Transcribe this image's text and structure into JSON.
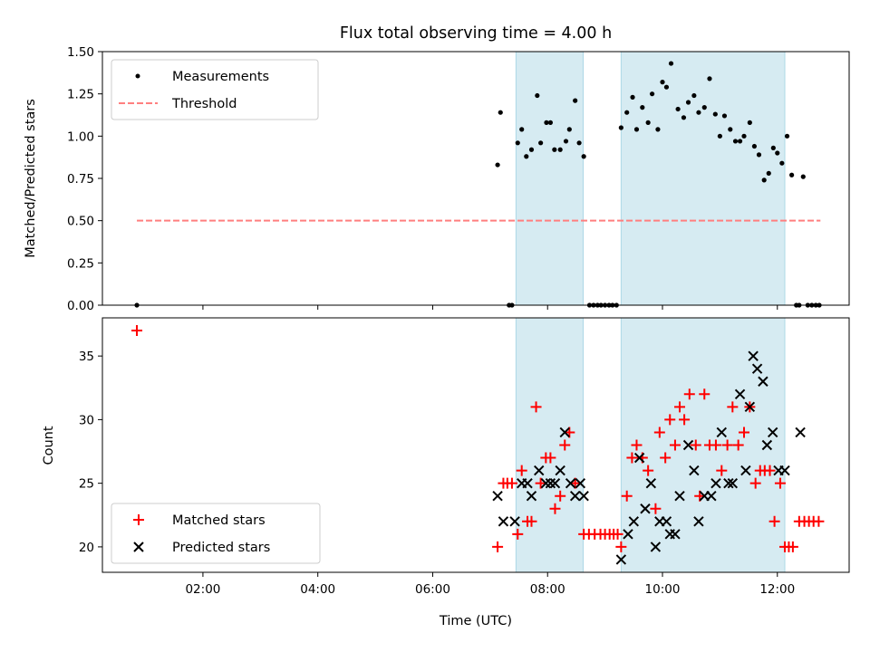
{
  "chart_data": {
    "type": "scatter",
    "title": "Flux total observing time = 4.00 h",
    "xlabel": "Time (UTC)",
    "xlim_hours": [
      0.25,
      13.25
    ],
    "x_ticks": [
      {
        "value": 2,
        "label": "02:00"
      },
      {
        "value": 4,
        "label": "04:00"
      },
      {
        "value": 6,
        "label": "06:00"
      },
      {
        "value": 8,
        "label": "08:00"
      },
      {
        "value": 10,
        "label": "10:00"
      },
      {
        "value": 12,
        "label": "12:00"
      }
    ],
    "shaded_intervals_hours": [
      [
        7.45,
        8.62
      ],
      [
        9.28,
        12.13
      ]
    ],
    "colors": {
      "shade": "#add8e6",
      "measurement": "#000000",
      "threshold": "#ff7f7f",
      "matched": "#ff0000",
      "predicted": "#000000"
    },
    "top": {
      "ylabel": "Matched/Predicted stars",
      "ylim": [
        0,
        1.5
      ],
      "y_ticks": [
        "0.00",
        "0.25",
        "0.50",
        "0.75",
        "1.00",
        "1.25",
        "1.50"
      ],
      "threshold": {
        "value": 0.5,
        "x_range": [
          0.85,
          12.75
        ]
      },
      "legend": {
        "measurements": "Measurements",
        "threshold": "Threshold"
      },
      "measurements": {
        "x": [
          0.85,
          7.13,
          7.18,
          7.33,
          7.38,
          7.48,
          7.55,
          7.63,
          7.72,
          7.82,
          7.88,
          7.98,
          8.05,
          8.12,
          8.22,
          8.32,
          8.38,
          8.48,
          8.55,
          8.63,
          8.73,
          8.8,
          8.87,
          8.93,
          9.0,
          9.07,
          9.13,
          9.2,
          9.28,
          9.38,
          9.48,
          9.55,
          9.65,
          9.75,
          9.82,
          9.92,
          10.0,
          10.07,
          10.15,
          10.27,
          10.37,
          10.45,
          10.55,
          10.63,
          10.73,
          10.82,
          10.92,
          11.0,
          11.08,
          11.18,
          11.27,
          11.35,
          11.42,
          11.52,
          11.6,
          11.68,
          11.77,
          11.85,
          11.93,
          12.0,
          12.08,
          12.17,
          12.25,
          12.33,
          12.38,
          12.45,
          12.53,
          12.6,
          12.67,
          12.73
        ],
        "y": [
          0.0,
          0.83,
          1.14,
          0.0,
          0.0,
          0.96,
          1.04,
          0.88,
          0.92,
          1.24,
          0.96,
          1.08,
          1.08,
          0.92,
          0.92,
          0.97,
          1.04,
          1.21,
          0.96,
          0.88,
          0.0,
          0.0,
          0.0,
          0.0,
          0.0,
          0.0,
          0.0,
          0.0,
          1.05,
          1.14,
          1.23,
          1.04,
          1.17,
          1.08,
          1.25,
          1.04,
          1.32,
          1.29,
          1.43,
          1.16,
          1.11,
          1.2,
          1.24,
          1.14,
          1.17,
          1.34,
          1.13,
          1.0,
          1.12,
          1.04,
          0.97,
          0.97,
          1.0,
          1.08,
          0.94,
          0.89,
          0.74,
          0.78,
          0.93,
          0.9,
          0.84,
          1.0,
          0.77,
          0.0,
          0.0,
          0.76,
          0.0,
          0.0,
          0.0,
          0.0
        ]
      }
    },
    "bottom": {
      "ylabel": "Count",
      "ylim": [
        18,
        38
      ],
      "y_ticks": [
        20,
        25,
        30,
        35
      ],
      "legend": {
        "matched": "Matched stars",
        "predicted": "Predicted stars"
      },
      "matched": {
        "x": [
          0.85,
          7.13,
          7.23,
          7.3,
          7.38,
          7.48,
          7.55,
          7.65,
          7.72,
          7.8,
          7.88,
          7.97,
          8.05,
          8.13,
          8.22,
          8.3,
          8.38,
          8.48,
          8.63,
          8.72,
          8.82,
          8.92,
          9.0,
          9.08,
          9.15,
          9.22,
          9.28,
          9.38,
          9.47,
          9.55,
          9.65,
          9.75,
          9.88,
          9.95,
          10.05,
          10.13,
          10.22,
          10.3,
          10.38,
          10.47,
          10.58,
          10.65,
          10.73,
          10.82,
          10.93,
          11.03,
          11.13,
          11.22,
          11.32,
          11.42,
          11.52,
          11.62,
          11.7,
          11.78,
          11.87,
          11.95,
          12.05,
          12.13,
          12.2,
          12.27,
          12.38,
          12.47,
          12.55,
          12.63,
          12.72
        ],
        "y": [
          37,
          20,
          25,
          25,
          25,
          21,
          26,
          22,
          22,
          31,
          25,
          27,
          27,
          23,
          24,
          28,
          29,
          25,
          21,
          21,
          21,
          21,
          21,
          21,
          21,
          21,
          20,
          24,
          27,
          28,
          27,
          26,
          23,
          29,
          27,
          30,
          28,
          31,
          30,
          32,
          28,
          24,
          32,
          28,
          28,
          26,
          28,
          31,
          28,
          29,
          31,
          25,
          26,
          26,
          26,
          22,
          25,
          20,
          20,
          20,
          22,
          22,
          22,
          22,
          22
        ]
      },
      "predicted": {
        "x": [
          7.13,
          7.23,
          7.43,
          7.55,
          7.65,
          7.72,
          7.85,
          7.97,
          8.05,
          8.13,
          8.22,
          8.3,
          8.4,
          8.48,
          8.57,
          8.63,
          9.28,
          9.4,
          9.5,
          9.6,
          9.7,
          9.8,
          9.88,
          9.95,
          10.07,
          10.13,
          10.22,
          10.3,
          10.45,
          10.55,
          10.63,
          10.73,
          10.85,
          10.93,
          11.03,
          11.15,
          11.22,
          11.35,
          11.45,
          11.52,
          11.58,
          11.65,
          11.75,
          11.82,
          11.92,
          12.02,
          12.13,
          12.4
        ],
        "y": [
          24,
          22,
          22,
          25,
          25,
          24,
          26,
          25,
          25,
          25,
          26,
          29,
          25,
          24,
          25,
          24,
          19,
          21,
          22,
          27,
          23,
          25,
          20,
          22,
          22,
          21,
          21,
          24,
          28,
          26,
          22,
          24,
          24,
          25,
          29,
          25,
          25,
          32,
          26,
          31,
          35,
          34,
          33,
          28,
          29,
          26,
          26,
          29
        ]
      }
    }
  }
}
